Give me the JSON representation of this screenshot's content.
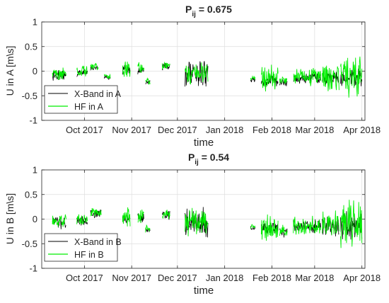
{
  "colors": {
    "xband": "#000000",
    "hf": "#00ee00",
    "grid": "#dedede",
    "axis": "#262626"
  },
  "chart_data": [
    {
      "type": "line",
      "title_main": "P",
      "title_sub": "ij",
      "title_value": " = 0.675",
      "xlabel": "time",
      "ylabel": "U in A [m\\s]",
      "ylim": [
        -1,
        1
      ],
      "yticks": [
        "-1",
        "-0.5",
        "0",
        "0.5",
        "1"
      ],
      "x_ticks": [
        "Oct 2017",
        "Nov 2017",
        "Dec 2017",
        "Jan 2018",
        "Feb 2018",
        "Mar 2018",
        "Apr 2018"
      ],
      "grid": true,
      "legend_position": "bottom-left",
      "series": [
        {
          "name": "X-Band in A",
          "color": "#000000"
        },
        {
          "name": "HF in A",
          "color": "#00ee00"
        }
      ],
      "segments": [
        {
          "start": "2017-09-10",
          "end": "2017-09-19",
          "center": -0.05,
          "hf_amp": 0.15,
          "xb_amp": 0.12
        },
        {
          "start": "2017-09-26",
          "end": "2017-10-03",
          "center": 0.0,
          "hf_amp": 0.12,
          "xb_amp": 0.1
        },
        {
          "start": "2017-10-05",
          "end": "2017-10-10",
          "center": 0.1,
          "hf_amp": 0.08,
          "xb_amp": 0.06
        },
        {
          "start": "2017-10-14",
          "end": "2017-10-18",
          "center": -0.1,
          "hf_amp": 0.06,
          "xb_amp": 0.05
        },
        {
          "start": "2017-10-26",
          "end": "2017-10-31",
          "center": 0.05,
          "hf_amp": 0.25,
          "xb_amp": 0.12
        },
        {
          "start": "2017-11-05",
          "end": "2017-11-09",
          "center": 0.05,
          "hf_amp": 0.15,
          "xb_amp": 0.1
        },
        {
          "start": "2017-11-10",
          "end": "2017-11-13",
          "center": -0.2,
          "hf_amp": 0.08,
          "xb_amp": 0.06
        },
        {
          "start": "2017-11-21",
          "end": "2017-11-26",
          "center": 0.13,
          "hf_amp": 0.1,
          "xb_amp": 0.08
        },
        {
          "start": "2017-12-06",
          "end": "2017-12-21",
          "center": -0.05,
          "hf_amp": 0.25,
          "xb_amp": 0.3
        },
        {
          "start": "2018-01-18",
          "end": "2018-01-21",
          "center": -0.15,
          "hf_amp": 0.05,
          "xb_amp": 0.05
        },
        {
          "start": "2018-01-25",
          "end": "2018-02-05",
          "center": -0.15,
          "hf_amp": 0.3,
          "xb_amp": 0.15
        },
        {
          "start": "2018-02-06",
          "end": "2018-02-11",
          "center": -0.2,
          "hf_amp": 0.12,
          "xb_amp": 0.08
        },
        {
          "start": "2018-02-15",
          "end": "2018-03-05",
          "center": -0.12,
          "hf_amp": 0.2,
          "xb_amp": 0.12
        },
        {
          "start": "2018-03-06",
          "end": "2018-03-17",
          "center": -0.12,
          "hf_amp": 0.3,
          "xb_amp": 0.15
        },
        {
          "start": "2018-03-18",
          "end": "2018-04-01",
          "center": -0.1,
          "hf_amp": 0.45,
          "xb_amp": 0.2
        }
      ]
    },
    {
      "type": "line",
      "title_main": "P",
      "title_sub": "ij",
      "title_value": " = 0.54",
      "xlabel": "time",
      "ylabel": "U in B [m\\s]",
      "ylim": [
        -1,
        1
      ],
      "yticks": [
        "-1",
        "-0.5",
        "0",
        "0.5",
        "1"
      ],
      "x_ticks": [
        "Oct 2017",
        "Nov 2017",
        "Dec 2017",
        "Jan 2018",
        "Feb 2018",
        "Mar 2018",
        "Apr 2018"
      ],
      "grid": true,
      "legend_position": "bottom-left",
      "series": [
        {
          "name": "X-Band in B",
          "color": "#000000"
        },
        {
          "name": "HF in B",
          "color": "#00ee00"
        }
      ],
      "segments": [
        {
          "start": "2017-09-10",
          "end": "2017-09-19",
          "center": -0.05,
          "hf_amp": 0.15,
          "xb_amp": 0.15
        },
        {
          "start": "2017-09-26",
          "end": "2017-10-03",
          "center": 0.0,
          "hf_amp": 0.12,
          "xb_amp": 0.1
        },
        {
          "start": "2017-10-05",
          "end": "2017-10-12",
          "center": 0.15,
          "hf_amp": 0.1,
          "xb_amp": 0.1
        },
        {
          "start": "2017-10-26",
          "end": "2017-10-31",
          "center": 0.05,
          "hf_amp": 0.25,
          "xb_amp": 0.12
        },
        {
          "start": "2017-11-05",
          "end": "2017-11-09",
          "center": 0.05,
          "hf_amp": 0.15,
          "xb_amp": 0.1
        },
        {
          "start": "2017-11-10",
          "end": "2017-11-13",
          "center": -0.2,
          "hf_amp": 0.08,
          "xb_amp": 0.06
        },
        {
          "start": "2017-11-21",
          "end": "2017-11-26",
          "center": 0.1,
          "hf_amp": 0.12,
          "xb_amp": 0.12
        },
        {
          "start": "2017-12-06",
          "end": "2017-12-21",
          "center": -0.05,
          "hf_amp": 0.3,
          "xb_amp": 0.35
        },
        {
          "start": "2018-01-18",
          "end": "2018-01-21",
          "center": -0.15,
          "hf_amp": 0.05,
          "xb_amp": 0.05
        },
        {
          "start": "2018-01-25",
          "end": "2018-02-05",
          "center": -0.15,
          "hf_amp": 0.3,
          "xb_amp": 0.15
        },
        {
          "start": "2018-02-06",
          "end": "2018-02-11",
          "center": -0.25,
          "hf_amp": 0.15,
          "xb_amp": 0.12
        },
        {
          "start": "2018-02-15",
          "end": "2018-03-05",
          "center": -0.12,
          "hf_amp": 0.2,
          "xb_amp": 0.15
        },
        {
          "start": "2018-03-06",
          "end": "2018-03-17",
          "center": -0.12,
          "hf_amp": 0.3,
          "xb_amp": 0.25
        },
        {
          "start": "2018-03-18",
          "end": "2018-04-01",
          "center": -0.1,
          "hf_amp": 0.5,
          "xb_amp": 0.3
        }
      ]
    }
  ]
}
